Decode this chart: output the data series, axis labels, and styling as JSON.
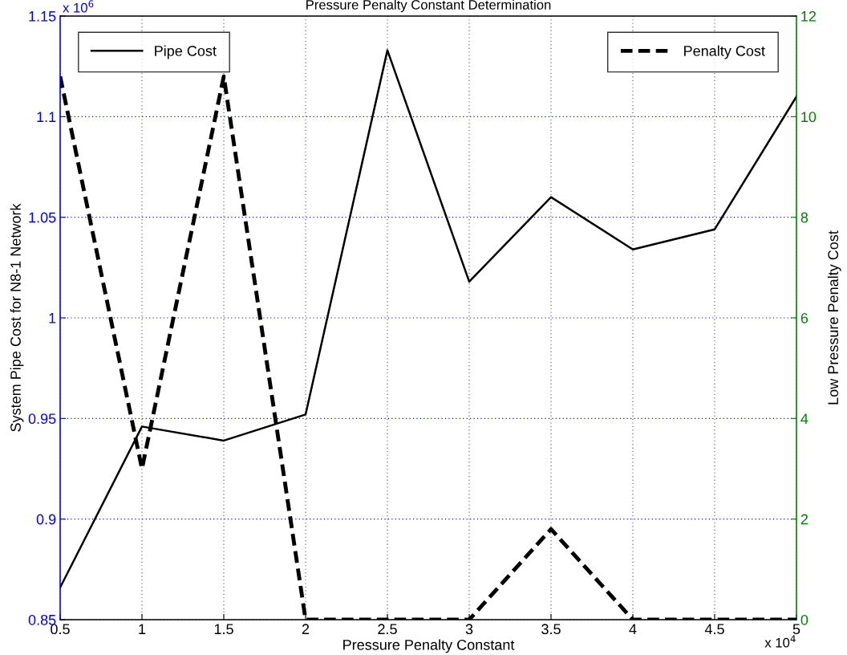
{
  "chart_data": {
    "type": "line",
    "title": "Pressure Penalty Constant Determination",
    "xlabel": "Pressure Penalty Constant",
    "ylabel": "System Pipe Cost for N8-1 Network",
    "y2label": "Low Pressure Penalty Cost",
    "x": [
      0.5,
      1,
      1.5,
      2,
      2.5,
      3,
      3.5,
      4,
      4.5,
      5
    ],
    "series": [
      {
        "name": "Pipe Cost",
        "color": "#000000",
        "line_style": "solid",
        "values": [
          0.866,
          0.946,
          0.939,
          0.952,
          1.133,
          1.018,
          1.06,
          1.034,
          1.044,
          1.11
        ]
      },
      {
        "name": "Penalty Cost",
        "color": "#000000",
        "line_style": "dashed",
        "axis": "y2",
        "values": [
          10.8,
          3.0,
          10.8,
          0,
          0,
          0,
          1.8,
          0,
          0,
          0
        ]
      }
    ],
    "xlim": [
      0.5,
      5
    ],
    "xticks": [
      0.5,
      1,
      1.5,
      2,
      2.5,
      3,
      3.5,
      4,
      4.5,
      5
    ],
    "ylim": [
      0.85,
      1.15
    ],
    "yticks": [
      0.85,
      0.9,
      0.95,
      1,
      1.05,
      1.1,
      1.15
    ],
    "y2lim": [
      0,
      12
    ],
    "y2ticks": [
      0,
      2,
      4,
      6,
      8,
      10,
      12
    ],
    "annotations": [
      "x 10$^{4}$",
      "x 10$^{6}$"
    ],
    "grid": true,
    "legend": "top",
    "marker": "none"
  }
}
